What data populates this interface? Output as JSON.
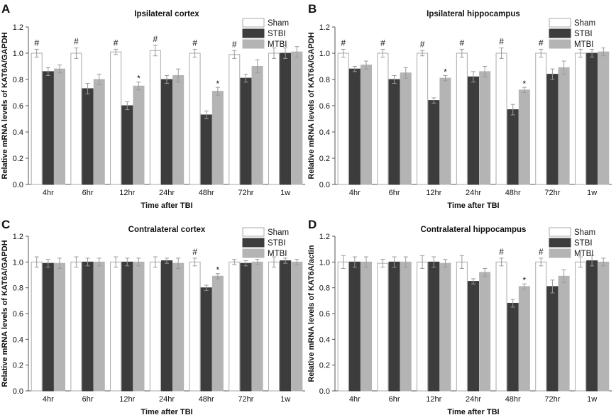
{
  "chart_data": [
    {
      "panel": "A",
      "type": "bar",
      "title": "Ipsilateral cortex",
      "xlabel": "Time after TBI",
      "ylabel": "Relative mRNA levels of KAT6A/GAPDH",
      "ylim": [
        0,
        1.2
      ],
      "yticks": [
        "0.0",
        "0.2",
        "0.4",
        "0.6",
        "0.8",
        "1.0",
        "1.2"
      ],
      "categories": [
        "4hr",
        "6hr",
        "12hr",
        "24hr",
        "48hr",
        "72hr",
        "1w"
      ],
      "legend_position": "top-right",
      "series": [
        {
          "name": "Sham",
          "color": "#ffffff",
          "values": [
            1.0,
            1.0,
            1.01,
            1.02,
            1.0,
            0.99,
            1.0
          ],
          "errors": [
            0.03,
            0.04,
            0.02,
            0.04,
            0.03,
            0.03,
            0.04
          ]
        },
        {
          "name": "STBI",
          "color": "#3c3c3c",
          "values": [
            0.86,
            0.73,
            0.6,
            0.8,
            0.53,
            0.81,
            1.0
          ],
          "errors": [
            0.03,
            0.04,
            0.03,
            0.03,
            0.03,
            0.03,
            0.04
          ]
        },
        {
          "name": "MTBI",
          "color": "#b4b4b4",
          "values": [
            0.88,
            0.8,
            0.75,
            0.83,
            0.71,
            0.9,
            1.01
          ],
          "errors": [
            0.03,
            0.04,
            0.03,
            0.05,
            0.03,
            0.05,
            0.04
          ]
        }
      ],
      "hash_marks": [
        "#",
        "#",
        "#",
        "#",
        "#",
        "#",
        ""
      ],
      "star_marks": [
        "",
        "",
        "*",
        "",
        "*",
        "",
        ""
      ]
    },
    {
      "panel": "B",
      "type": "bar",
      "title": "Ipsilateral hippocampus",
      "xlabel": "Time after TBI",
      "ylabel": "Relative mRNA levels of KAT6A/GAPDH",
      "ylim": [
        0,
        1.2
      ],
      "yticks": [
        "0.0",
        "0.2",
        "0.4",
        "0.6",
        "0.8",
        "1.0",
        "1.2"
      ],
      "categories": [
        "4hr",
        "6hr",
        "12hr",
        "24hr",
        "48hr",
        "72hr",
        "1w"
      ],
      "legend_position": "top-right",
      "series": [
        {
          "name": "Sham",
          "color": "#ffffff",
          "values": [
            1.0,
            1.0,
            1.0,
            1.0,
            1.0,
            1.0,
            1.0
          ],
          "errors": [
            0.03,
            0.03,
            0.02,
            0.03,
            0.04,
            0.03,
            0.03
          ]
        },
        {
          "name": "STBI",
          "color": "#3c3c3c",
          "values": [
            0.88,
            0.8,
            0.64,
            0.82,
            0.57,
            0.84,
            1.0
          ],
          "errors": [
            0.02,
            0.03,
            0.02,
            0.04,
            0.04,
            0.04,
            0.03
          ]
        },
        {
          "name": "MTBI",
          "color": "#b4b4b4",
          "values": [
            0.91,
            0.85,
            0.81,
            0.86,
            0.72,
            0.89,
            1.01
          ],
          "errors": [
            0.03,
            0.04,
            0.02,
            0.04,
            0.02,
            0.05,
            0.03
          ]
        }
      ],
      "hash_marks": [
        "#",
        "#",
        "#",
        "#",
        "#",
        "#",
        ""
      ],
      "star_marks": [
        "",
        "",
        "*",
        "",
        "*",
        "",
        ""
      ]
    },
    {
      "panel": "C",
      "type": "bar",
      "title": "Contralateral cortex",
      "xlabel": "Time after TBI",
      "ylabel": "Relative mRNA levels of KAT6A/GAPDH",
      "ylim": [
        0,
        1.2
      ],
      "yticks": [
        "0.0",
        "0.2",
        "0.4",
        "0.6",
        "0.8",
        "1.0",
        "1.2"
      ],
      "categories": [
        "4hr",
        "6hr",
        "12hr",
        "24hr",
        "48hr",
        "72hr",
        "1w"
      ],
      "legend_position": "top-right",
      "series": [
        {
          "name": "Sham",
          "color": "#ffffff",
          "values": [
            1.0,
            1.0,
            1.0,
            1.0,
            1.0,
            1.0,
            1.0
          ],
          "errors": [
            0.04,
            0.04,
            0.04,
            0.04,
            0.03,
            0.02,
            0.04
          ]
        },
        {
          "name": "STBI",
          "color": "#3c3c3c",
          "values": [
            0.99,
            1.0,
            1.0,
            1.01,
            0.8,
            0.99,
            1.01
          ],
          "errors": [
            0.03,
            0.03,
            0.03,
            0.02,
            0.02,
            0.02,
            0.02
          ]
        },
        {
          "name": "MTBI",
          "color": "#b4b4b4",
          "values": [
            0.99,
            1.0,
            1.0,
            0.99,
            0.89,
            1.0,
            1.0
          ],
          "errors": [
            0.04,
            0.03,
            0.03,
            0.04,
            0.02,
            0.02,
            0.02
          ]
        }
      ],
      "hash_marks": [
        "",
        "",
        "",
        "",
        "#",
        "",
        ""
      ],
      "star_marks": [
        "",
        "",
        "",
        "",
        "*",
        "",
        ""
      ]
    },
    {
      "panel": "D",
      "type": "bar",
      "title": "Contralateral hippocampus",
      "xlabel": "Time after TBI",
      "ylabel": "Relative mRNA levels of KAT6A/actin",
      "ylim": [
        0,
        1.2
      ],
      "yticks": [
        "0.0",
        "0.2",
        "0.4",
        "0.6",
        "0.8",
        "1.0",
        "1.2"
      ],
      "categories": [
        "4hr",
        "6hr",
        "12hr",
        "24hr",
        "48hr",
        "72hr",
        "1w"
      ],
      "legend_position": "top-right",
      "series": [
        {
          "name": "Sham",
          "color": "#ffffff",
          "values": [
            1.0,
            0.99,
            1.0,
            1.0,
            1.0,
            1.0,
            1.0
          ],
          "errors": [
            0.05,
            0.03,
            0.05,
            0.05,
            0.03,
            0.03,
            0.04
          ]
        },
        {
          "name": "STBI",
          "color": "#3c3c3c",
          "values": [
            1.0,
            1.0,
            1.0,
            0.85,
            0.68,
            0.81,
            1.01
          ],
          "errors": [
            0.04,
            0.04,
            0.04,
            0.02,
            0.03,
            0.05,
            0.04
          ]
        },
        {
          "name": "MTBI",
          "color": "#b4b4b4",
          "values": [
            1.0,
            1.0,
            0.99,
            0.92,
            0.81,
            0.89,
            1.0
          ],
          "errors": [
            0.04,
            0.04,
            0.03,
            0.03,
            0.02,
            0.05,
            0.03
          ]
        }
      ],
      "hash_marks": [
        "",
        "",
        "",
        "",
        "#",
        "#",
        ""
      ],
      "star_marks": [
        "",
        "",
        "",
        "",
        "*",
        "",
        ""
      ]
    }
  ]
}
